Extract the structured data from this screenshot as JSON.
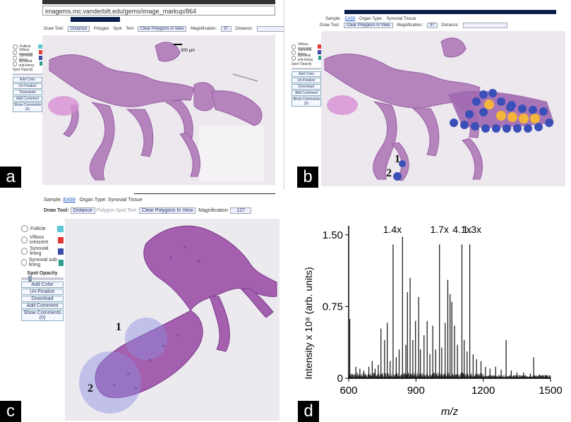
{
  "panels": {
    "a": {
      "label": "a"
    },
    "b": {
      "label": "b"
    },
    "c": {
      "label": "c"
    },
    "d": {
      "label": "d"
    }
  },
  "panel_a": {
    "url": "imagems.mc.vanderbilt.edu/gems/image_markup/864",
    "scale_bar_label": "300 µm",
    "tool_label": "Draw Tool:",
    "tool_buttons": [
      "Distance",
      "Polygon",
      "Spot",
      "Text"
    ],
    "clear_button": "Clear Polygons in View",
    "magnification_label": "Magnification:",
    "magnification_value": "37",
    "distance_label": "Distance:",
    "distance_unit": "µm",
    "legend": [
      {
        "label": "Follicle",
        "color": "#5ec7d6"
      },
      {
        "label": "Villous crescent",
        "color": "#e03a3a"
      },
      {
        "label": "Synovial lining",
        "color": "#3c4aa8"
      },
      {
        "label": "Synovial sub-lining",
        "color": "#2e9f8f"
      }
    ],
    "spot_opacity_label": "Spot Opacity",
    "side_buttons": [
      "Add Color",
      "Un-Finalize",
      "Download",
      "Add Comment",
      "Show Comments (0)"
    ]
  },
  "panel_b": {
    "sample_label": "Sample:",
    "sample_value": "EA59",
    "organ_label": "Organ Type:",
    "organ_value": "Synovial Tissue",
    "tool_label": "Draw Tool:",
    "clear_button": "Clear Polygons in View",
    "magnification_label": "Magnification:",
    "magnification_value": "37",
    "distance_label": "Distance:",
    "legend": [
      {
        "label": "Villous crescent",
        "color": "#e03a3a"
      },
      {
        "label": "Synovial lining",
        "color": "#3c4aa8"
      },
      {
        "label": "Synovial sub-lining",
        "color": "#2e9f8f"
      }
    ],
    "spot_opacity_label": "Spot Opacity",
    "side_buttons": [
      "Add Color",
      "Un-Finalize",
      "Download",
      "Add Comment",
      "Show Comments (0)"
    ],
    "markers": [
      "1",
      "2"
    ]
  },
  "panel_c": {
    "sample_label": "Sample:",
    "sample_value": "EA59",
    "organ_label": "Organ Type:",
    "organ_value": "Synovial Tissue",
    "tool_label": "Draw Tool:",
    "tool_buttons": [
      "Distance",
      "Polygon",
      "Spot",
      "Text"
    ],
    "clear_button": "Clear Polygons In View",
    "magnification_label": "Magnification:",
    "magnification_value": "127",
    "legend": [
      {
        "label": "Follicle",
        "color": "#5ec7d6"
      },
      {
        "label": "Villous crescent",
        "color": "#e03a3a"
      },
      {
        "label": "Synovial lining",
        "color": "#3c4aa8"
      },
      {
        "label": "Synovial sub-lining",
        "color": "#2e9f8f"
      }
    ],
    "spot_opacity_label": "Spot Opacity",
    "side_buttons": [
      "Add Color",
      "Un-Finalize",
      "Download",
      "Add Comment",
      "Show Comments (0)"
    ],
    "markers": [
      "1",
      "2"
    ]
  },
  "chart_data": {
    "type": "line",
    "xlabel": "m/z",
    "ylabel": "Intensity x 10⁸ (arb. units)",
    "xlim": [
      600,
      1500
    ],
    "ylim": [
      0,
      1.55
    ],
    "xticks": [
      600,
      900,
      1200,
      1500
    ],
    "yticks": [
      0,
      0.75,
      1.5
    ],
    "ytick_labels": [
      "0",
      "0.75",
      "1.50"
    ],
    "annotations": [
      {
        "text": "1.4x",
        "x": 795
      },
      {
        "text": "1.7x",
        "x": 1005
      },
      {
        "text": "4.1x",
        "x": 1105
      },
      {
        "text": "1.3x",
        "x": 1150
      }
    ],
    "peaks": [
      [
        605,
        0.62
      ],
      [
        632,
        0.12
      ],
      [
        650,
        0.1
      ],
      [
        668,
        0.08
      ],
      [
        690,
        0.12
      ],
      [
        705,
        0.18
      ],
      [
        718,
        0.1
      ],
      [
        732,
        0.14
      ],
      [
        744,
        0.52
      ],
      [
        760,
        0.4
      ],
      [
        772,
        0.58
      ],
      [
        785,
        0.18
      ],
      [
        798,
        1.4
      ],
      [
        812,
        0.22
      ],
      [
        825,
        0.3
      ],
      [
        840,
        1.48
      ],
      [
        855,
        0.35
      ],
      [
        862,
        0.9
      ],
      [
        874,
        1.05
      ],
      [
        886,
        0.4
      ],
      [
        898,
        0.6
      ],
      [
        912,
        0.85
      ],
      [
        920,
        0.3
      ],
      [
        936,
        0.45
      ],
      [
        950,
        0.6
      ],
      [
        962,
        0.25
      ],
      [
        975,
        0.55
      ],
      [
        988,
        0.3
      ],
      [
        1005,
        1.4
      ],
      [
        1015,
        0.32
      ],
      [
        1030,
        0.58
      ],
      [
        1042,
        1.03
      ],
      [
        1052,
        0.88
      ],
      [
        1060,
        0.8
      ],
      [
        1072,
        0.55
      ],
      [
        1085,
        0.35
      ],
      [
        1105,
        1.4
      ],
      [
        1115,
        0.4
      ],
      [
        1128,
        0.28
      ],
      [
        1140,
        1.4
      ],
      [
        1155,
        0.25
      ],
      [
        1170,
        0.2
      ],
      [
        1190,
        0.18
      ],
      [
        1210,
        0.12
      ],
      [
        1230,
        0.1
      ],
      [
        1255,
        0.12
      ],
      [
        1280,
        0.09
      ],
      [
        1302,
        0.4
      ],
      [
        1325,
        0.08
      ],
      [
        1350,
        0.06
      ],
      [
        1380,
        0.06
      ],
      [
        1410,
        0.05
      ],
      [
        1425,
        0.22
      ],
      [
        1450,
        0.04
      ],
      [
        1480,
        0.03
      ]
    ]
  }
}
